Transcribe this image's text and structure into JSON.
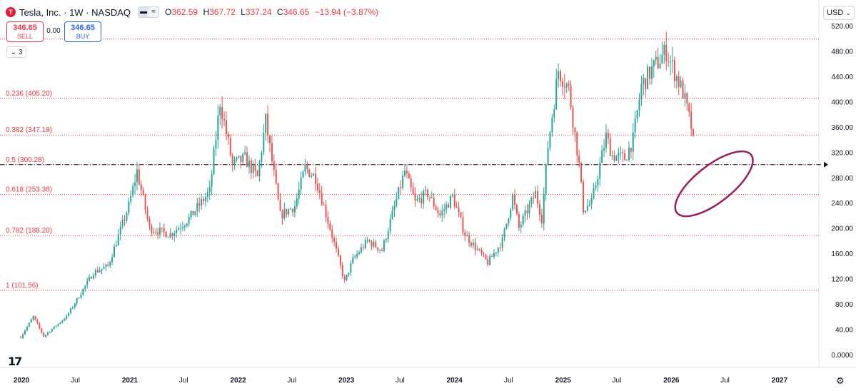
{
  "header": {
    "logo_letter": "T",
    "symbol": "Tesla, Inc. · 1W · NASDAQ",
    "compare_icons": [
      "bar-icon",
      "wave-icon"
    ],
    "ohlc": [
      {
        "k": "O",
        "v": "362.59"
      },
      {
        "k": "H",
        "v": "367.72"
      },
      {
        "k": "L",
        "v": "337.24"
      },
      {
        "k": "C",
        "v": "346.65"
      },
      {
        "k": "",
        "v": "−13.94 (−3.87%)"
      }
    ]
  },
  "trade": {
    "sell_price": "346.65",
    "sell_label": "SELL",
    "spread": "0.00",
    "buy_price": "346.65",
    "buy_label": "BUY",
    "collapse_count": "3"
  },
  "currency": "USD",
  "colors": {
    "up": "#26a69a",
    "down": "#ef5350",
    "fib": "#f23645",
    "ellipse": "#9c1f5a",
    "text": "#131722"
  },
  "chart_data": {
    "type": "candlestick",
    "ylim": [
      0,
      520
    ],
    "y_ticks": [
      "0.0000",
      "40.00",
      "80.00",
      "120.00",
      "160.00",
      "200.00",
      "240.00",
      "280.00",
      "320.00",
      "360.00",
      "400.00",
      "440.00",
      "480.00",
      "520.00"
    ],
    "y_tick_values": [
      0,
      40,
      80,
      120,
      160,
      200,
      240,
      280,
      320,
      360,
      400,
      440,
      480,
      520
    ],
    "x_ticks": [
      "2020",
      "Jul",
      "2021",
      "Jul",
      "2022",
      "Jul",
      "2023",
      "Jul",
      "2024",
      "Jul",
      "2025",
      "Jul",
      "2026",
      "Jul",
      "2027"
    ],
    "x_tick_dates": [
      "2020-01-01",
      "2020-07-01",
      "2021-01-01",
      "2021-07-01",
      "2022-01-01",
      "2022-07-01",
      "2023-01-01",
      "2023-07-01",
      "2024-01-01",
      "2024-07-01",
      "2025-01-01",
      "2025-07-01",
      "2026-01-01",
      "2026-07-01",
      "2027-01-01"
    ],
    "fib_levels": [
      {
        "label": "0.236 (405.20)",
        "value": 405.2
      },
      {
        "label": "0.382 (347.18)",
        "value": 347.18
      },
      {
        "label": "0.5 (300.28)",
        "value": 300.28
      },
      {
        "label": "0.618 (253.38)",
        "value": 253.38
      },
      {
        "label": "0.782 (188.20)",
        "value": 188.2
      },
      {
        "label": "1 (101.56)",
        "value": 101.56
      }
    ],
    "fib_top_value": 498.8,
    "dashed_line_value": 300.28,
    "weekly_close_path": [
      [
        "2019-12-30",
        28
      ],
      [
        "2020-02-10",
        60
      ],
      [
        "2020-03-16",
        29
      ],
      [
        "2020-06-01",
        60
      ],
      [
        "2020-08-31",
        130
      ],
      [
        "2020-10-19",
        140
      ],
      [
        "2020-12-28",
        235
      ],
      [
        "2021-01-25",
        290
      ],
      [
        "2021-03-08",
        200
      ],
      [
        "2021-05-17",
        190
      ],
      [
        "2021-07-19",
        215
      ],
      [
        "2021-09-27",
        258
      ],
      [
        "2021-11-01",
        400
      ],
      [
        "2021-12-13",
        300
      ],
      [
        "2022-01-24",
        310
      ],
      [
        "2022-03-07",
        280
      ],
      [
        "2022-04-04",
        370
      ],
      [
        "2022-05-23",
        220
      ],
      [
        "2022-07-11",
        235
      ],
      [
        "2022-08-15",
        295
      ],
      [
        "2022-09-19",
        280
      ],
      [
        "2022-11-07",
        200
      ],
      [
        "2022-12-26",
        115
      ],
      [
        "2023-01-23",
        150
      ],
      [
        "2023-03-13",
        180
      ],
      [
        "2023-05-01",
        165
      ],
      [
        "2023-07-17",
        290
      ],
      [
        "2023-08-21",
        240
      ],
      [
        "2023-10-02",
        255
      ],
      [
        "2023-11-13",
        220
      ],
      [
        "2023-12-25",
        250
      ],
      [
        "2024-02-05",
        190
      ],
      [
        "2024-04-22",
        145
      ],
      [
        "2024-06-10",
        180
      ],
      [
        "2024-07-15",
        250
      ],
      [
        "2024-08-05",
        200
      ],
      [
        "2024-09-30",
        255
      ],
      [
        "2024-10-21",
        215
      ],
      [
        "2024-11-11",
        330
      ],
      [
        "2024-12-16",
        450
      ],
      [
        "2025-01-20",
        420
      ],
      [
        "2025-02-24",
        300
      ],
      [
        "2025-03-10",
        230
      ],
      [
        "2025-04-07",
        240
      ],
      [
        "2025-05-26",
        345
      ],
      [
        "2025-06-16",
        315
      ],
      [
        "2025-07-28",
        310
      ],
      [
        "2025-08-25",
        340
      ],
      [
        "2025-09-22",
        425
      ],
      [
        "2025-10-27",
        450
      ],
      [
        "2025-12-15",
        480
      ],
      [
        "2026-01-05",
        455
      ],
      [
        "2026-02-09",
        415
      ],
      [
        "2026-03-16",
        346.65
      ]
    ],
    "annotation": {
      "type": "ellipse",
      "center_value": 270,
      "center_date": "2026-05-25"
    }
  }
}
